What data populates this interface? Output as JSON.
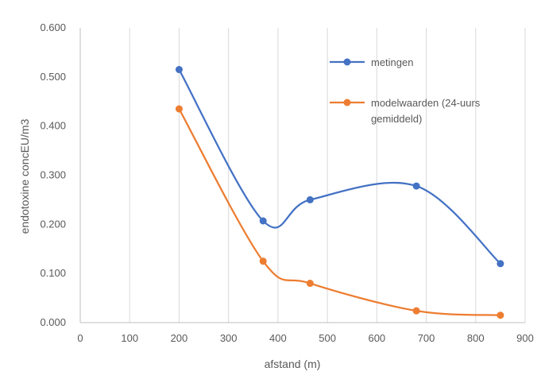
{
  "chart_data": {
    "type": "line",
    "title": "",
    "xlabel": "afstand (m)",
    "ylabel": "endotoxine concEU/m3",
    "xlim": [
      0,
      900
    ],
    "ylim": [
      0,
      0.6
    ],
    "x_ticks": [
      "0",
      "100",
      "200",
      "300",
      "400",
      "500",
      "600",
      "700",
      "800",
      "900"
    ],
    "y_ticks": [
      "0.000",
      "0.100",
      "0.200",
      "0.300",
      "0.400",
      "0.500",
      "0.600"
    ],
    "grid": "vertical",
    "legend_position": "top-right",
    "series": [
      {
        "name": "metingen",
        "color": "#4472C4",
        "points": [
          {
            "x": 200,
            "y": 0.515
          },
          {
            "x": 370,
            "y": 0.207
          },
          {
            "x": 465,
            "y": 0.25
          },
          {
            "x": 680,
            "y": 0.278
          },
          {
            "x": 850,
            "y": 0.12
          }
        ]
      },
      {
        "name": "modelwaarden (24-uurs gemiddeld)",
        "name_lines": [
          "modelwaarden (24-uurs",
          "gemiddeld)"
        ],
        "color": "#ED7D31",
        "points": [
          {
            "x": 200,
            "y": 0.435
          },
          {
            "x": 370,
            "y": 0.125
          },
          {
            "x": 465,
            "y": 0.08
          },
          {
            "x": 680,
            "y": 0.024
          },
          {
            "x": 850,
            "y": 0.015
          }
        ]
      }
    ]
  }
}
